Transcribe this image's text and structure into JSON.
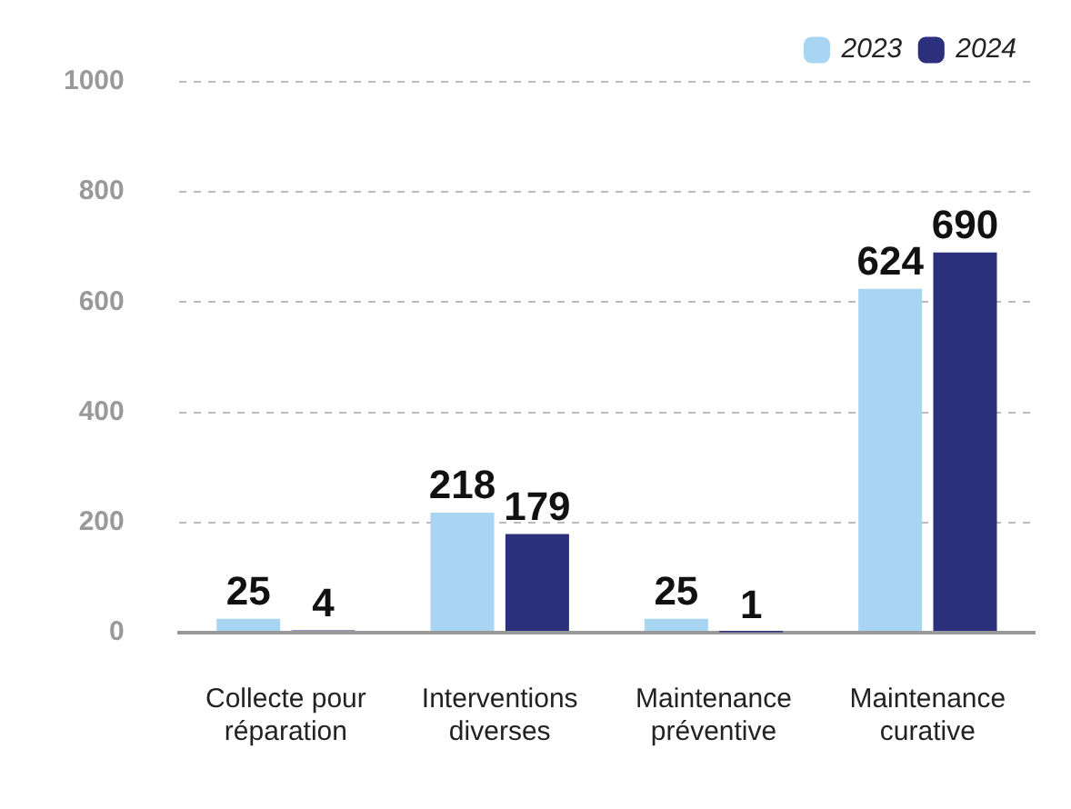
{
  "chart_data": {
    "type": "bar",
    "categories": [
      "Collecte pour réparation",
      "Interventions diverses",
      "Maintenance préventive",
      "Maintenance curative"
    ],
    "series": [
      {
        "name": "2023",
        "color": "#a8d5f2",
        "values": [
          25,
          218,
          25,
          624
        ]
      },
      {
        "name": "2024",
        "color": "#2c2f7c",
        "values": [
          4,
          179,
          1,
          690
        ]
      }
    ],
    "ylim": [
      0,
      1000
    ],
    "yticks": [
      0,
      200,
      400,
      600,
      800,
      1000
    ],
    "grid": "y",
    "legend": "top right",
    "data_labels": true
  }
}
